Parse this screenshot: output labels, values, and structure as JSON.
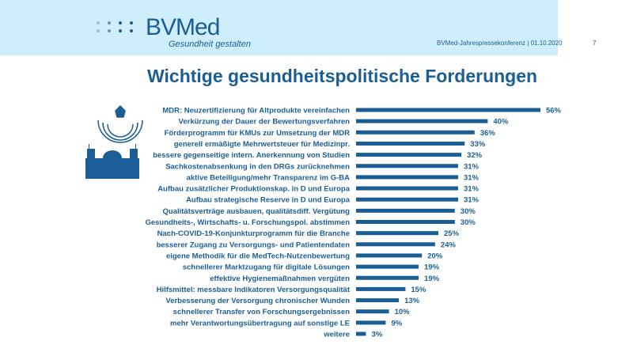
{
  "header": {
    "logo": "BVMed",
    "tagline": "Gesundheit gestalten",
    "conference": "BVMed-Jahrespressekonferenz | 01.10.2020",
    "page": "7"
  },
  "title": "Wichtige gesundheitspolitische Forderungen",
  "colors": {
    "bar": "#1b5e95",
    "band": "#cdeefa"
  },
  "chart_data": {
    "type": "bar",
    "orientation": "horizontal",
    "title": "Wichtige gesundheitspolitische Forderungen",
    "xlabel": "",
    "ylabel": "",
    "xlim": [
      0,
      60
    ],
    "unit": "%",
    "categories": [
      "MDR: Neuzertifizierung für Altprodukte vereinfachen",
      "Verkürzung der Dauer der Bewertungsverfahren",
      "Förderprogramm für KMUs zur Umsetzung der MDR",
      "generell ermäßigte Mehrwertsteuer für Medizinpr.",
      "bessere gegenseitige intern. Anerkennung von Studien",
      "Sachkostenabsenkung in den DRGs zurücknehmen",
      "aktive Beteiligung/mehr Transparenz im G-BA",
      "Aufbau zusätzlicher Produktionskap. in D und Europa",
      "Aufbau strategische Reserve in D und Europa",
      "Qualitätsverträge ausbauen, qualitätsdiff. Vergütung",
      "Gesundheits-, Wirtschafts- u. Forschungspol. abstimmen",
      "Nach-COVID-19-Konjunkturprogramm für die Branche",
      "besserer Zugang zu Versorgungs- und Patientendaten",
      "eigene Methodik für die MedTech-Nutzenbewertung",
      "schnellerer Marktzugang für digitale Lösungen",
      "effektive Hygienemaßnahmen vergüten",
      "Hilfsmittel: messbare Indikatoren Versorgungsqualität",
      "Verbesserung der Versorgung chronischer Wunden",
      "schnellerer Transfer von Forschungsergebnissen",
      "mehr Verantwortungsübertragung auf sonstige LE",
      "weitere"
    ],
    "values": [
      56,
      40,
      36,
      33,
      32,
      31,
      31,
      31,
      31,
      30,
      30,
      25,
      24,
      20,
      19,
      19,
      15,
      13,
      10,
      9,
      3
    ]
  }
}
